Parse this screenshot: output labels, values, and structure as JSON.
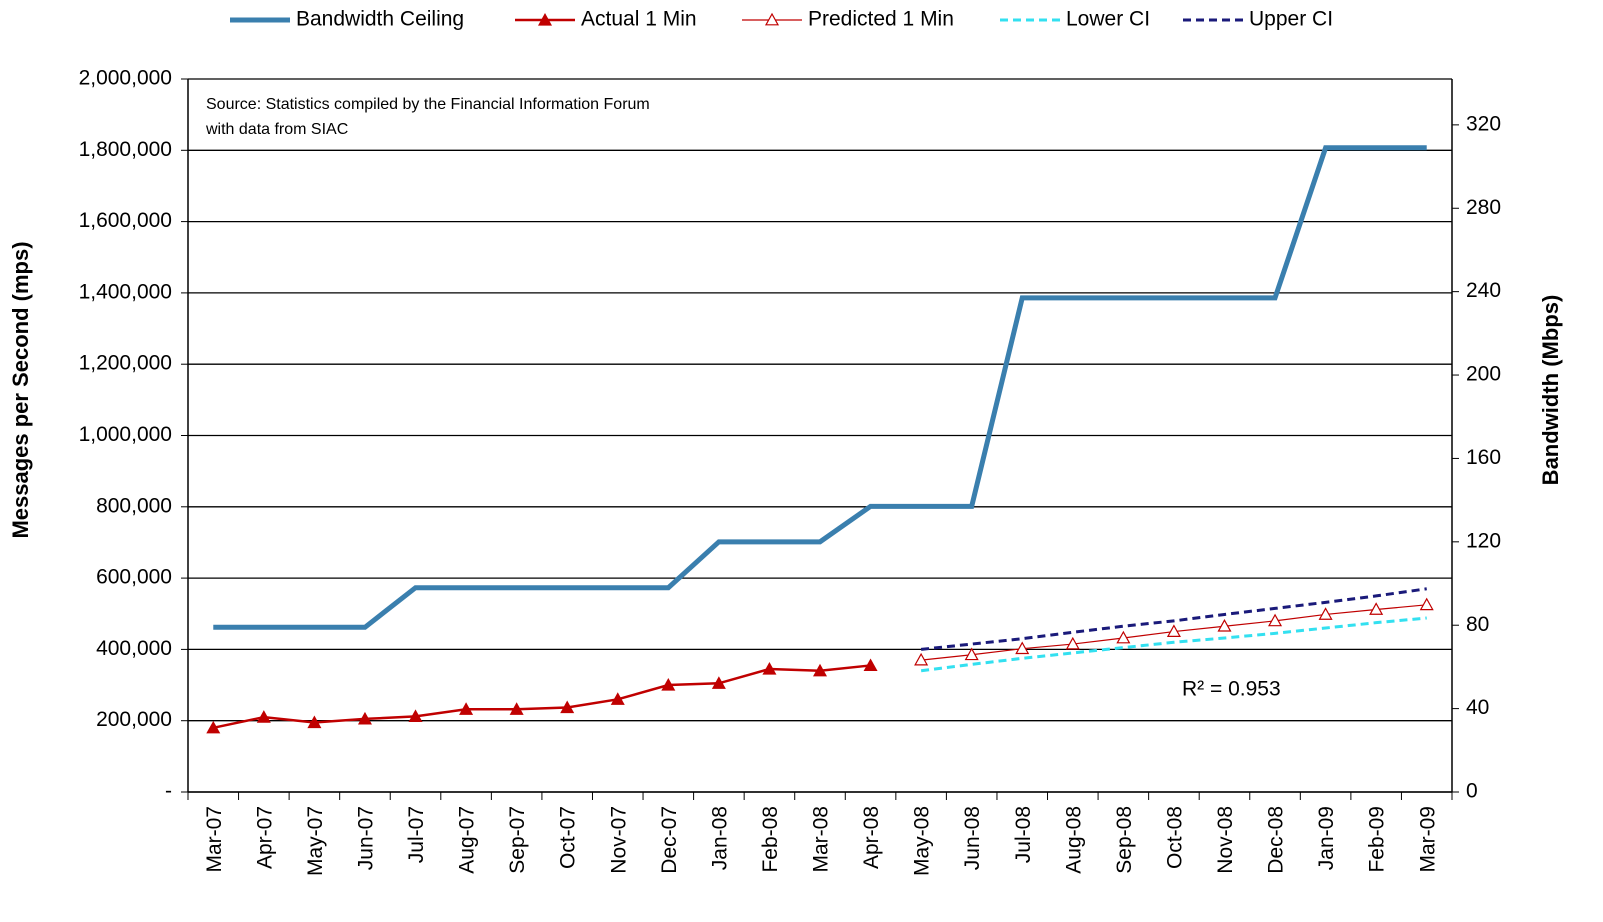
{
  "chart_data": {
    "type": "line",
    "annotations": [
      "Source: Statistics compiled by  the Financial Information Forum",
      "with data from SIAC",
      "R² = 0.953"
    ],
    "ylabel": "Messages per Second (mps)",
    "y2label": "Bandwidth (Mbps)",
    "categories": [
      "Mar-07",
      "Apr-07",
      "May-07",
      "Jun-07",
      "Jul-07",
      "Aug-07",
      "Sep-07",
      "Oct-07",
      "Nov-07",
      "Dec-07",
      "Jan-08",
      "Feb-08",
      "Mar-08",
      "Apr-08",
      "May-08",
      "Jun-08",
      "Jul-08",
      "Aug-08",
      "Sep-08",
      "Oct-08",
      "Nov-08",
      "Dec-08",
      "Jan-09",
      "Feb-09",
      "Mar-09"
    ],
    "ylim": [
      0,
      2000000
    ],
    "yticks": [
      {
        "value": 0,
        "label": "-"
      },
      {
        "value": 200000,
        "label": "200,000"
      },
      {
        "value": 400000,
        "label": "400,000"
      },
      {
        "value": 600000,
        "label": "600,000"
      },
      {
        "value": 800000,
        "label": "800,000"
      },
      {
        "value": 1000000,
        "label": "1,000,000"
      },
      {
        "value": 1200000,
        "label": "1,200,000"
      },
      {
        "value": 1400000,
        "label": "1,400,000"
      },
      {
        "value": 1600000,
        "label": "1,600,000"
      },
      {
        "value": 1800000,
        "label": "1,800,000"
      },
      {
        "value": 2000000,
        "label": "2,000,000"
      }
    ],
    "y2lim": [
      0,
      342
    ],
    "y2ticks": [
      0,
      40,
      80,
      120,
      160,
      200,
      240,
      280,
      320
    ],
    "grid": true,
    "legend": "top",
    "series": [
      {
        "name": "Bandwidth Ceiling",
        "color": "#3a7fae",
        "axis": "y2",
        "width": 5,
        "dash": "none",
        "marker": "none",
        "values": [
          79,
          79,
          79,
          79,
          98,
          98,
          98,
          98,
          98,
          98,
          120,
          120,
          120,
          137,
          137,
          137,
          237,
          237,
          237,
          237,
          237,
          237,
          309,
          309,
          309
        ]
      },
      {
        "name": "Actual 1 Min",
        "color": "#c00000",
        "width": 2.5,
        "dash": "none",
        "marker": "filled-triangle",
        "values": [
          180000,
          210000,
          195000,
          205000,
          212000,
          232000,
          232000,
          237000,
          260000,
          300000,
          305000,
          345000,
          340000,
          355000,
          null,
          null,
          null,
          null,
          null,
          null,
          null,
          null,
          null,
          null,
          null
        ]
      },
      {
        "name": "Predicted 1 Min",
        "color": "#c00000",
        "width": 1.2,
        "dash": "none",
        "marker": "open-triangle",
        "values": [
          null,
          null,
          null,
          null,
          null,
          null,
          null,
          null,
          null,
          null,
          null,
          null,
          null,
          null,
          370000,
          385000,
          402000,
          415000,
          432000,
          450000,
          465000,
          480000,
          498000,
          512000,
          525000
        ]
      },
      {
        "name": "Lower CI",
        "color": "#33e0f0",
        "width": 3,
        "dash": "8,5",
        "marker": "none",
        "values": [
          null,
          null,
          null,
          null,
          null,
          null,
          null,
          null,
          null,
          null,
          null,
          null,
          null,
          null,
          340000,
          358000,
          375000,
          390000,
          405000,
          420000,
          432000,
          445000,
          460000,
          475000,
          488000
        ]
      },
      {
        "name": "Upper CI",
        "color": "#1a1a7a",
        "width": 3,
        "dash": "8,5",
        "marker": "none",
        "values": [
          null,
          null,
          null,
          null,
          null,
          null,
          null,
          null,
          null,
          null,
          null,
          null,
          null,
          null,
          400000,
          415000,
          430000,
          448000,
          465000,
          480000,
          498000,
          515000,
          532000,
          550000,
          570000
        ]
      }
    ]
  }
}
